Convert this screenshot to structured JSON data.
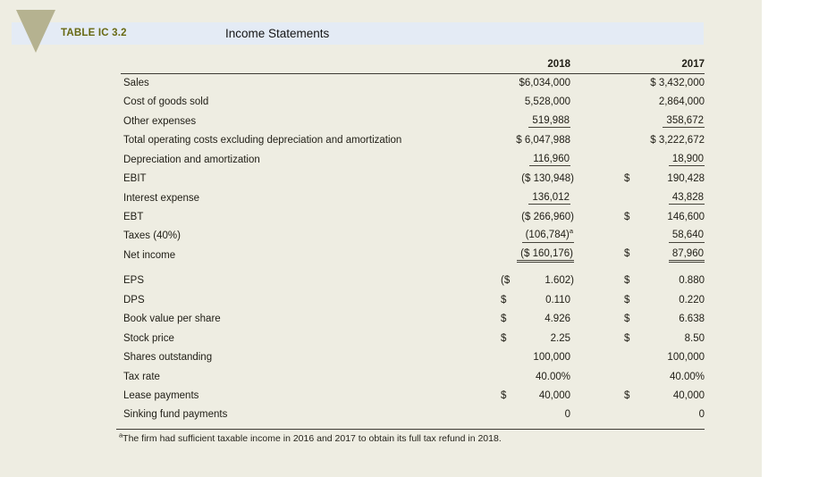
{
  "colors": {
    "panel_bg": "#eeede2",
    "band_bg": "#e4ebf5",
    "triangle": "#b5b290",
    "accent": "#686913"
  },
  "header": {
    "table_label": "TABLE IC 3.2",
    "title": "Income Statements"
  },
  "columns": [
    "2018",
    "2017"
  ],
  "rows": [
    {
      "label": "Sales",
      "v2018": {
        "p": "",
        "n": "$6,034,000",
        "u": 0
      },
      "v2017": {
        "p": "",
        "n": "$ 3,432,000",
        "u": 0
      }
    },
    {
      "label": "Cost of goods sold",
      "v2018": {
        "p": "",
        "n": "5,528,000",
        "u": 0
      },
      "v2017": {
        "p": "",
        "n": "2,864,000",
        "u": 0
      }
    },
    {
      "label": "Other expenses",
      "v2018": {
        "p": "",
        "n": "519,988",
        "u": 1
      },
      "v2017": {
        "p": "",
        "n": "358,672",
        "u": 1
      }
    },
    {
      "label": "Total operating costs excluding depreciation and amortization",
      "v2018": {
        "p": "",
        "n": "$ 6,047,988",
        "u": 0
      },
      "v2017": {
        "p": "",
        "n": "$ 3,222,672",
        "u": 0
      }
    },
    {
      "label": "Depreciation and amortization",
      "v2018": {
        "p": "",
        "n": "116,960",
        "u": 1
      },
      "v2017": {
        "p": "",
        "n": "18,900",
        "u": 1
      }
    },
    {
      "label": "EBIT",
      "v2018": {
        "p": "",
        "n": "($ 130,948)",
        "u": 0
      },
      "v2017": {
        "p": "$",
        "n": "190,428",
        "u": 0
      }
    },
    {
      "label": "Interest expense",
      "v2018": {
        "p": "",
        "n": "136,012",
        "u": 1
      },
      "v2017": {
        "p": "",
        "n": "43,828",
        "u": 1
      }
    },
    {
      "label": "EBT",
      "v2018": {
        "p": "",
        "n": "($ 266,960)",
        "u": 0
      },
      "v2017": {
        "p": "$",
        "n": "146,600",
        "u": 0
      }
    },
    {
      "label": "Taxes (40%)",
      "v2018": {
        "p": "",
        "n": "(106,784)",
        "u": 1,
        "sup": "a"
      },
      "v2017": {
        "p": "",
        "n": "58,640",
        "u": 1
      }
    },
    {
      "label": "Net income",
      "v2018": {
        "p": "",
        "n": "($ 160,176)",
        "u": 2
      },
      "v2017": {
        "p": "$",
        "n": "87,960",
        "u": 2
      }
    },
    {
      "label": "EPS",
      "gap": true,
      "v2018": {
        "p": "($",
        "n": "1.602)",
        "u": 0
      },
      "v2017": {
        "p": "$",
        "n": "0.880",
        "u": 0
      }
    },
    {
      "label": "DPS",
      "v2018": {
        "p": "$",
        "n": "0.110",
        "u": 0
      },
      "v2017": {
        "p": "$",
        "n": "0.220",
        "u": 0
      }
    },
    {
      "label": "Book value per share",
      "v2018": {
        "p": "$",
        "n": "4.926",
        "u": 0
      },
      "v2017": {
        "p": "$",
        "n": "6.638",
        "u": 0
      }
    },
    {
      "label": "Stock price",
      "v2018": {
        "p": "$",
        "n": "2.25",
        "u": 0
      },
      "v2017": {
        "p": "$",
        "n": "8.50",
        "u": 0
      }
    },
    {
      "label": "Shares outstanding",
      "v2018": {
        "p": "",
        "n": "100,000",
        "u": 0
      },
      "v2017": {
        "p": "",
        "n": "100,000",
        "u": 0
      }
    },
    {
      "label": "Tax rate",
      "v2018": {
        "p": "",
        "n": "40.00%",
        "u": 0
      },
      "v2017": {
        "p": "",
        "n": "40.00%",
        "u": 0
      }
    },
    {
      "label": "Lease payments",
      "v2018": {
        "p": "$",
        "n": "40,000",
        "u": 0
      },
      "v2017": {
        "p": "$",
        "n": "40,000",
        "u": 0
      }
    },
    {
      "label": "Sinking fund payments",
      "v2018": {
        "p": "",
        "n": "0",
        "u": 0
      },
      "v2017": {
        "p": "",
        "n": "0",
        "u": 0
      }
    }
  ],
  "footnote": {
    "sup": "a",
    "text": "The firm had sufficient taxable income in 2016 and 2017 to obtain its full tax refund in 2018."
  }
}
